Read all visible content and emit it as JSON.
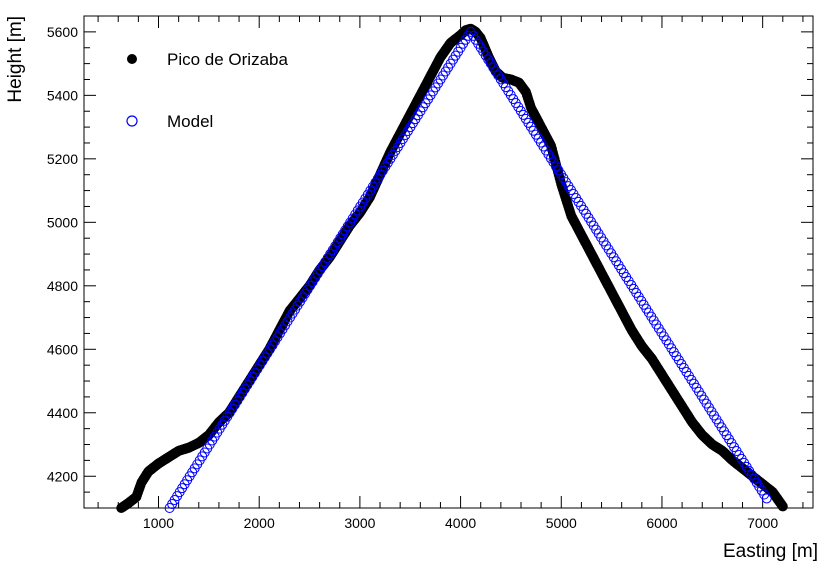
{
  "chart_data": {
    "type": "scatter",
    "title": "",
    "xlabel": "Easting [m]",
    "ylabel": "Height [m]",
    "xlim": [
      260,
      7500
    ],
    "ylim": [
      4100,
      5650
    ],
    "grid": false,
    "legend_placement": "top-left",
    "xticks": [
      1000,
      2000,
      3000,
      4000,
      5000,
      6000,
      7000
    ],
    "xtick_labels": [
      "1000",
      "2000",
      "3000",
      "4000",
      "5000",
      "6000",
      "7000"
    ],
    "yticks": [
      4200,
      4400,
      4600,
      4800,
      5000,
      5200,
      5400,
      5600
    ],
    "ytick_labels": [
      "4200",
      "4400",
      "4600",
      "4800",
      "5000",
      "5200",
      "5400",
      "5600"
    ],
    "series": [
      {
        "name": "Pico de Orizaba",
        "marker": "filled-circle",
        "color": "#000000",
        "profile": [
          [
            630,
            4100
          ],
          [
            700,
            4115
          ],
          [
            780,
            4135
          ],
          [
            830,
            4180
          ],
          [
            900,
            4215
          ],
          [
            1000,
            4240
          ],
          [
            1100,
            4260
          ],
          [
            1200,
            4280
          ],
          [
            1300,
            4290
          ],
          [
            1400,
            4305
          ],
          [
            1500,
            4330
          ],
          [
            1600,
            4370
          ],
          [
            1700,
            4400
          ],
          [
            1800,
            4450
          ],
          [
            1900,
            4500
          ],
          [
            2000,
            4550
          ],
          [
            2100,
            4600
          ],
          [
            2200,
            4660
          ],
          [
            2300,
            4720
          ],
          [
            2400,
            4760
          ],
          [
            2500,
            4800
          ],
          [
            2600,
            4850
          ],
          [
            2700,
            4890
          ],
          [
            2800,
            4940
          ],
          [
            2900,
            4990
          ],
          [
            3000,
            5030
          ],
          [
            3100,
            5080
          ],
          [
            3200,
            5150
          ],
          [
            3300,
            5220
          ],
          [
            3400,
            5280
          ],
          [
            3500,
            5340
          ],
          [
            3600,
            5400
          ],
          [
            3700,
            5460
          ],
          [
            3800,
            5520
          ],
          [
            3900,
            5565
          ],
          [
            4000,
            5590
          ],
          [
            4050,
            5605
          ],
          [
            4100,
            5610
          ],
          [
            4150,
            5600
          ],
          [
            4200,
            5580
          ],
          [
            4280,
            5520
          ],
          [
            4350,
            5475
          ],
          [
            4420,
            5455
          ],
          [
            4500,
            5450
          ],
          [
            4580,
            5440
          ],
          [
            4650,
            5410
          ],
          [
            4700,
            5360
          ],
          [
            4800,
            5300
          ],
          [
            4900,
            5240
          ],
          [
            4950,
            5180
          ],
          [
            5000,
            5120
          ],
          [
            5100,
            5020
          ],
          [
            5200,
            4960
          ],
          [
            5300,
            4900
          ],
          [
            5400,
            4840
          ],
          [
            5500,
            4780
          ],
          [
            5600,
            4720
          ],
          [
            5700,
            4660
          ],
          [
            5800,
            4610
          ],
          [
            5900,
            4570
          ],
          [
            6000,
            4520
          ],
          [
            6100,
            4470
          ],
          [
            6200,
            4420
          ],
          [
            6300,
            4370
          ],
          [
            6400,
            4330
          ],
          [
            6500,
            4300
          ],
          [
            6600,
            4280
          ],
          [
            6700,
            4250
          ],
          [
            6800,
            4225
          ],
          [
            6900,
            4200
          ],
          [
            7000,
            4175
          ],
          [
            7100,
            4150
          ],
          [
            7200,
            4105
          ]
        ]
      },
      {
        "name": "Model",
        "marker": "open-circle",
        "color": "#0000ff",
        "profile": [
          [
            1110,
            4100
          ],
          [
            4100,
            5600
          ],
          [
            7040,
            4130
          ]
        ]
      }
    ]
  }
}
